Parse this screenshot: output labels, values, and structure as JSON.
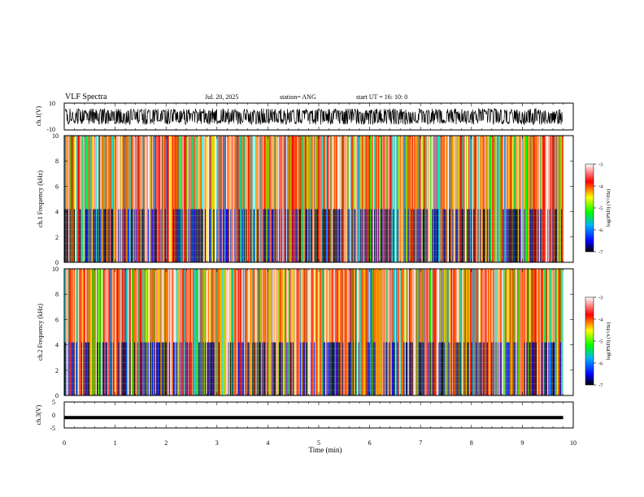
{
  "header": {
    "title": "VLF Spectra",
    "date": "Jul. 20, 2025",
    "station": "station= ANG",
    "start": "start UT = 16: 10: 0"
  },
  "colormap": {
    "stops": [
      "#000000",
      "#0000ff",
      "#00b0ff",
      "#00ff00",
      "#ffff00",
      "#ff0000",
      "#ffffff"
    ]
  },
  "colorbar": {
    "label": "log(PSD) (V²/Hz)",
    "ticks": [
      "-3",
      "-4",
      "-5",
      "-6",
      "-7"
    ]
  },
  "chart_data": [
    {
      "type": "line",
      "panel": "ch1-waveform",
      "ylabel": "ch.1(V)",
      "ylim": [
        -10,
        10
      ],
      "y_tick_labels": [
        "10",
        "-10"
      ],
      "x": [
        0,
        10
      ],
      "approx_envelope": [
        -6,
        6
      ],
      "xlim": [
        0,
        10
      ],
      "signal_end_min": 9.8
    },
    {
      "type": "heatmap",
      "panel": "ch1-spectrogram",
      "ylabel": "ch.1 Frequency (kHz)",
      "ylim": [
        0,
        10
      ],
      "y_tick_labels": [
        "0",
        "2",
        "4",
        "6",
        "8",
        "10"
      ],
      "zlim": [
        -7,
        -3
      ],
      "xlim": [
        0,
        10
      ],
      "signal_end_min": 9.8,
      "low_band_khz": 4.2
    },
    {
      "type": "heatmap",
      "panel": "ch2-spectrogram",
      "ylabel": "ch.2 Frequency (kHz)",
      "ylim": [
        0,
        10
      ],
      "y_tick_labels": [
        "0",
        "2",
        "4",
        "6",
        "8",
        "10"
      ],
      "zlim": [
        -7,
        -3
      ],
      "xlim": [
        0,
        10
      ],
      "signal_end_min": 9.8,
      "low_band_khz": 4.2
    },
    {
      "type": "line",
      "panel": "ch3-waveform",
      "ylabel": "ch.3(V)",
      "ylim": [
        -5,
        5
      ],
      "y_tick_labels": [
        "5",
        "0",
        "-5"
      ],
      "x": [
        0,
        9.8
      ],
      "y": [
        -1.0,
        -1.0
      ],
      "xlim": [
        0,
        10
      ],
      "xlabel": "Time (min)",
      "x_tick_labels": [
        "0",
        "1",
        "2",
        "3",
        "4",
        "5",
        "6",
        "7",
        "8",
        "9",
        "10"
      ]
    }
  ]
}
